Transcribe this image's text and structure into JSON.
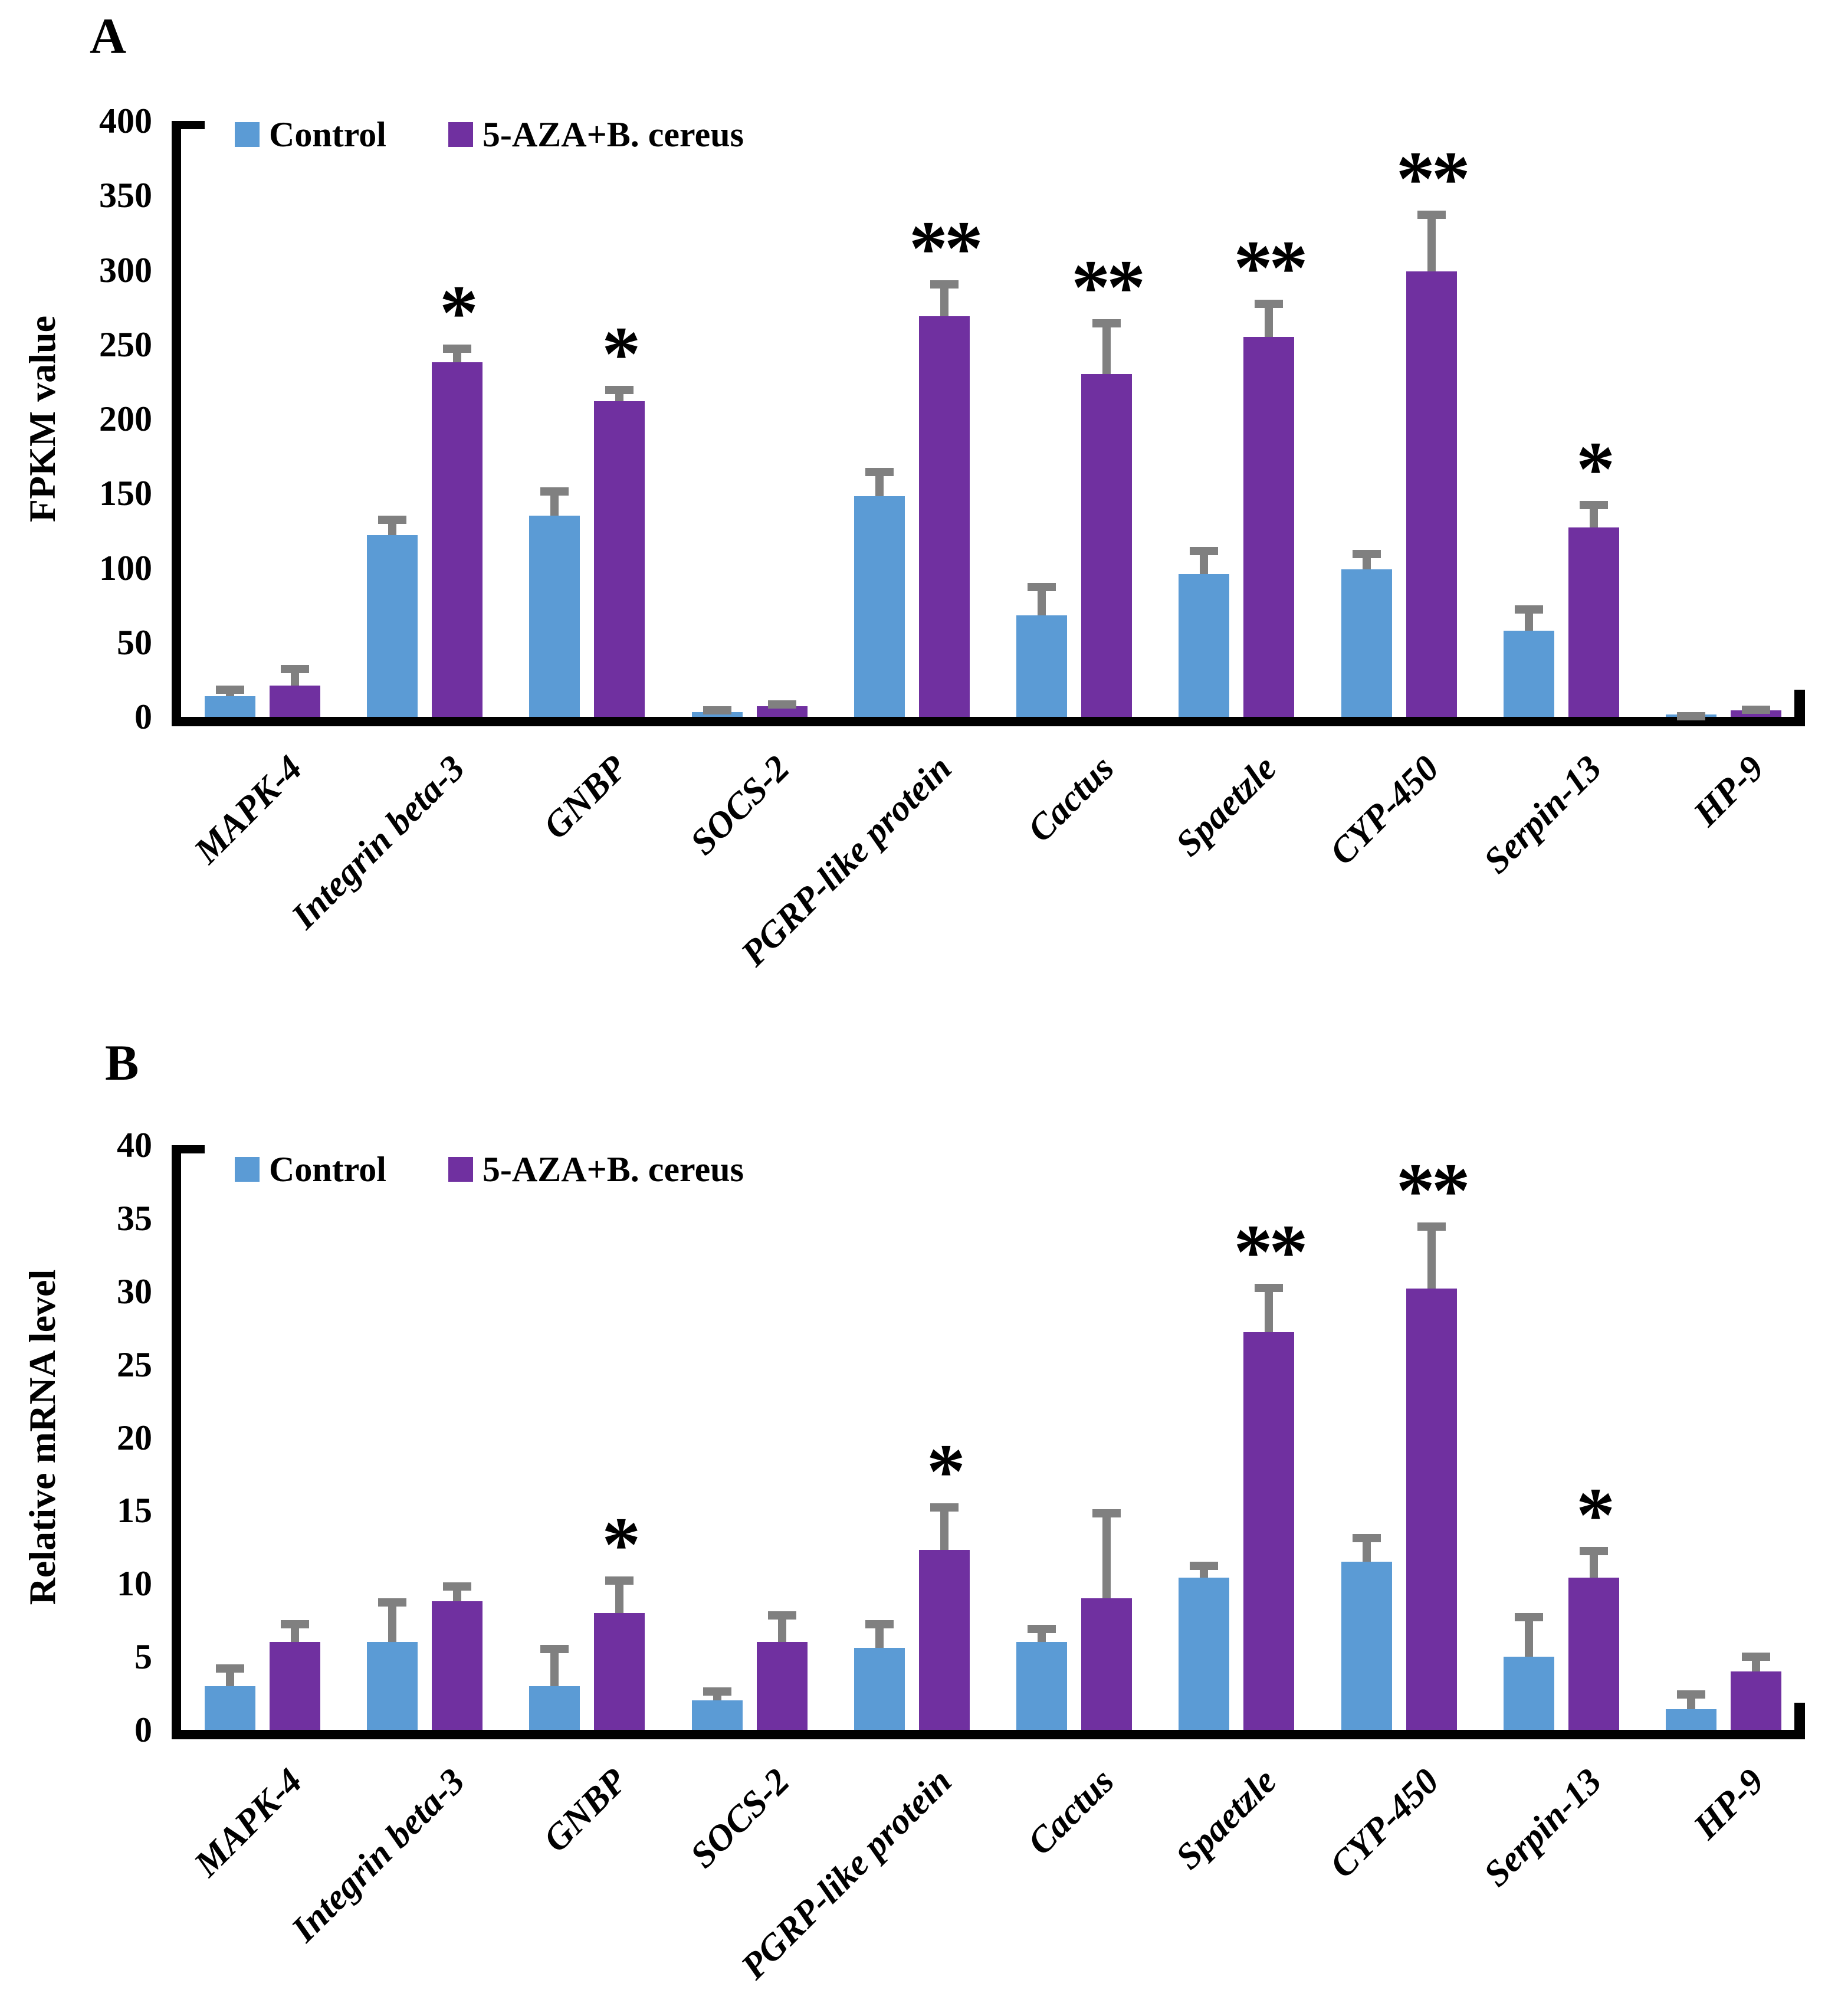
{
  "figure": {
    "background_color": "#ffffff",
    "description_visible_text_only": true
  },
  "chart_data": [
    {
      "type": "bar",
      "panel_label": "A",
      "title": "",
      "xlabel": "",
      "ylabel": "FPKM value",
      "ylim": [
        0,
        400
      ],
      "ystep": 50,
      "grid": false,
      "legend_position": "top-left-inside",
      "legend": [
        "Control",
        "5-AZA+B. cereus"
      ],
      "categories": [
        "MAPK-4",
        "Integrin beta-3",
        "GNBP",
        "SOCS-2",
        "PGRP-like protein",
        "Cactus",
        "Spaetzle",
        "CYP-450",
        "Serpin-13",
        "HP-9"
      ],
      "series": [
        {
          "name": "Control",
          "color": "#5B9BD5",
          "values": [
            14,
            122,
            135,
            3,
            148,
            68,
            96,
            99,
            58,
            1.5
          ],
          "errors_plus": [
            7,
            13,
            19,
            4,
            19,
            22,
            18,
            13,
            17,
            1.5
          ]
        },
        {
          "name": "5-AZA+B. cereus",
          "color": "#7030A0",
          "values": [
            21,
            238,
            212,
            7,
            269,
            230,
            255,
            299,
            127,
            4.5
          ],
          "errors_plus": [
            14,
            12,
            10,
            4,
            24,
            37,
            25,
            41,
            18,
            3
          ]
        }
      ],
      "significance": [
        "",
        "*",
        "*",
        "",
        "**",
        "**",
        "**",
        "**",
        "*",
        ""
      ],
      "error_bar_color": "#808080",
      "axis_color": "#000000"
    },
    {
      "type": "bar",
      "panel_label": "B",
      "title": "",
      "xlabel": "",
      "ylabel": "Relative mRNA level",
      "ylim": [
        0,
        40
      ],
      "ystep": 5,
      "grid": false,
      "legend_position": "top-left-inside",
      "legend": [
        "Control",
        "5-AZA+B. cereus"
      ],
      "categories": [
        "MAPK-4",
        "Integrin beta-3",
        "GNBP",
        "SOCS-2",
        "PGRP-like protein",
        "Cactus",
        "Spaetzle",
        "CYP-450",
        "Serpin-13",
        "HP-9"
      ],
      "series": [
        {
          "name": "Control",
          "color": "#5B9BD5",
          "values": [
            3,
            6,
            3,
            2,
            5.6,
            6,
            10.4,
            11.5,
            5,
            1.4
          ],
          "errors_plus": [
            1.5,
            3,
            2.8,
            0.9,
            1.9,
            1.2,
            1.1,
            1.9,
            3,
            1.3
          ]
        },
        {
          "name": "5-AZA+B. cereus",
          "color": "#7030A0",
          "values": [
            6,
            8.8,
            8,
            6,
            12.3,
            9,
            27.2,
            30.2,
            10.4,
            4
          ],
          "errors_plus": [
            1.5,
            1.3,
            2.5,
            2.1,
            3.2,
            6.1,
            3.3,
            4.5,
            2.1,
            1.3
          ]
        }
      ],
      "significance": [
        "",
        "",
        "*",
        "",
        "*",
        "",
        "**",
        "**",
        "*",
        ""
      ],
      "error_bar_color": "#808080",
      "axis_color": "#000000"
    }
  ]
}
